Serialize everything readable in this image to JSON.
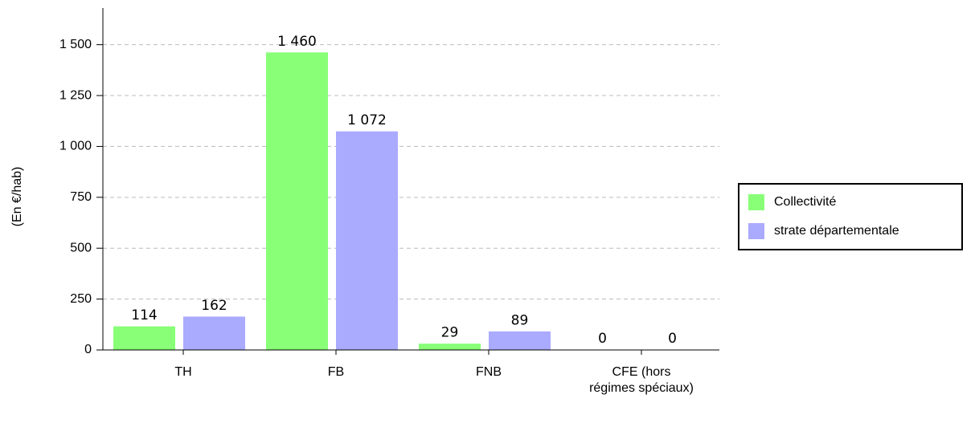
{
  "chart_data": {
    "type": "bar",
    "y_label": "(En €/hab)",
    "categories": [
      "TH",
      "FB",
      "FNB",
      "CFE (hors régimes spéciaux)"
    ],
    "series": [
      {
        "name": "Collectivité",
        "color": "#88ff77",
        "values": [
          114,
          1460,
          29,
          0
        ],
        "value_labels": [
          "114",
          "1 460",
          "29",
          "0"
        ]
      },
      {
        "name": "strate départementale",
        "color": "#aaaaff",
        "values": [
          162,
          1072,
          89,
          0
        ],
        "value_labels": [
          "162",
          "1 072",
          "89",
          "0"
        ]
      }
    ],
    "ylim": [
      0,
      1680
    ],
    "yticks": [
      0,
      250,
      500,
      750,
      {
        "value": 1000,
        "label": "1 000"
      },
      {
        "value": 1250,
        "label": "1 250"
      },
      {
        "value": 1500,
        "label": "1 500"
      }
    ],
    "grid": true,
    "legend": "right"
  }
}
